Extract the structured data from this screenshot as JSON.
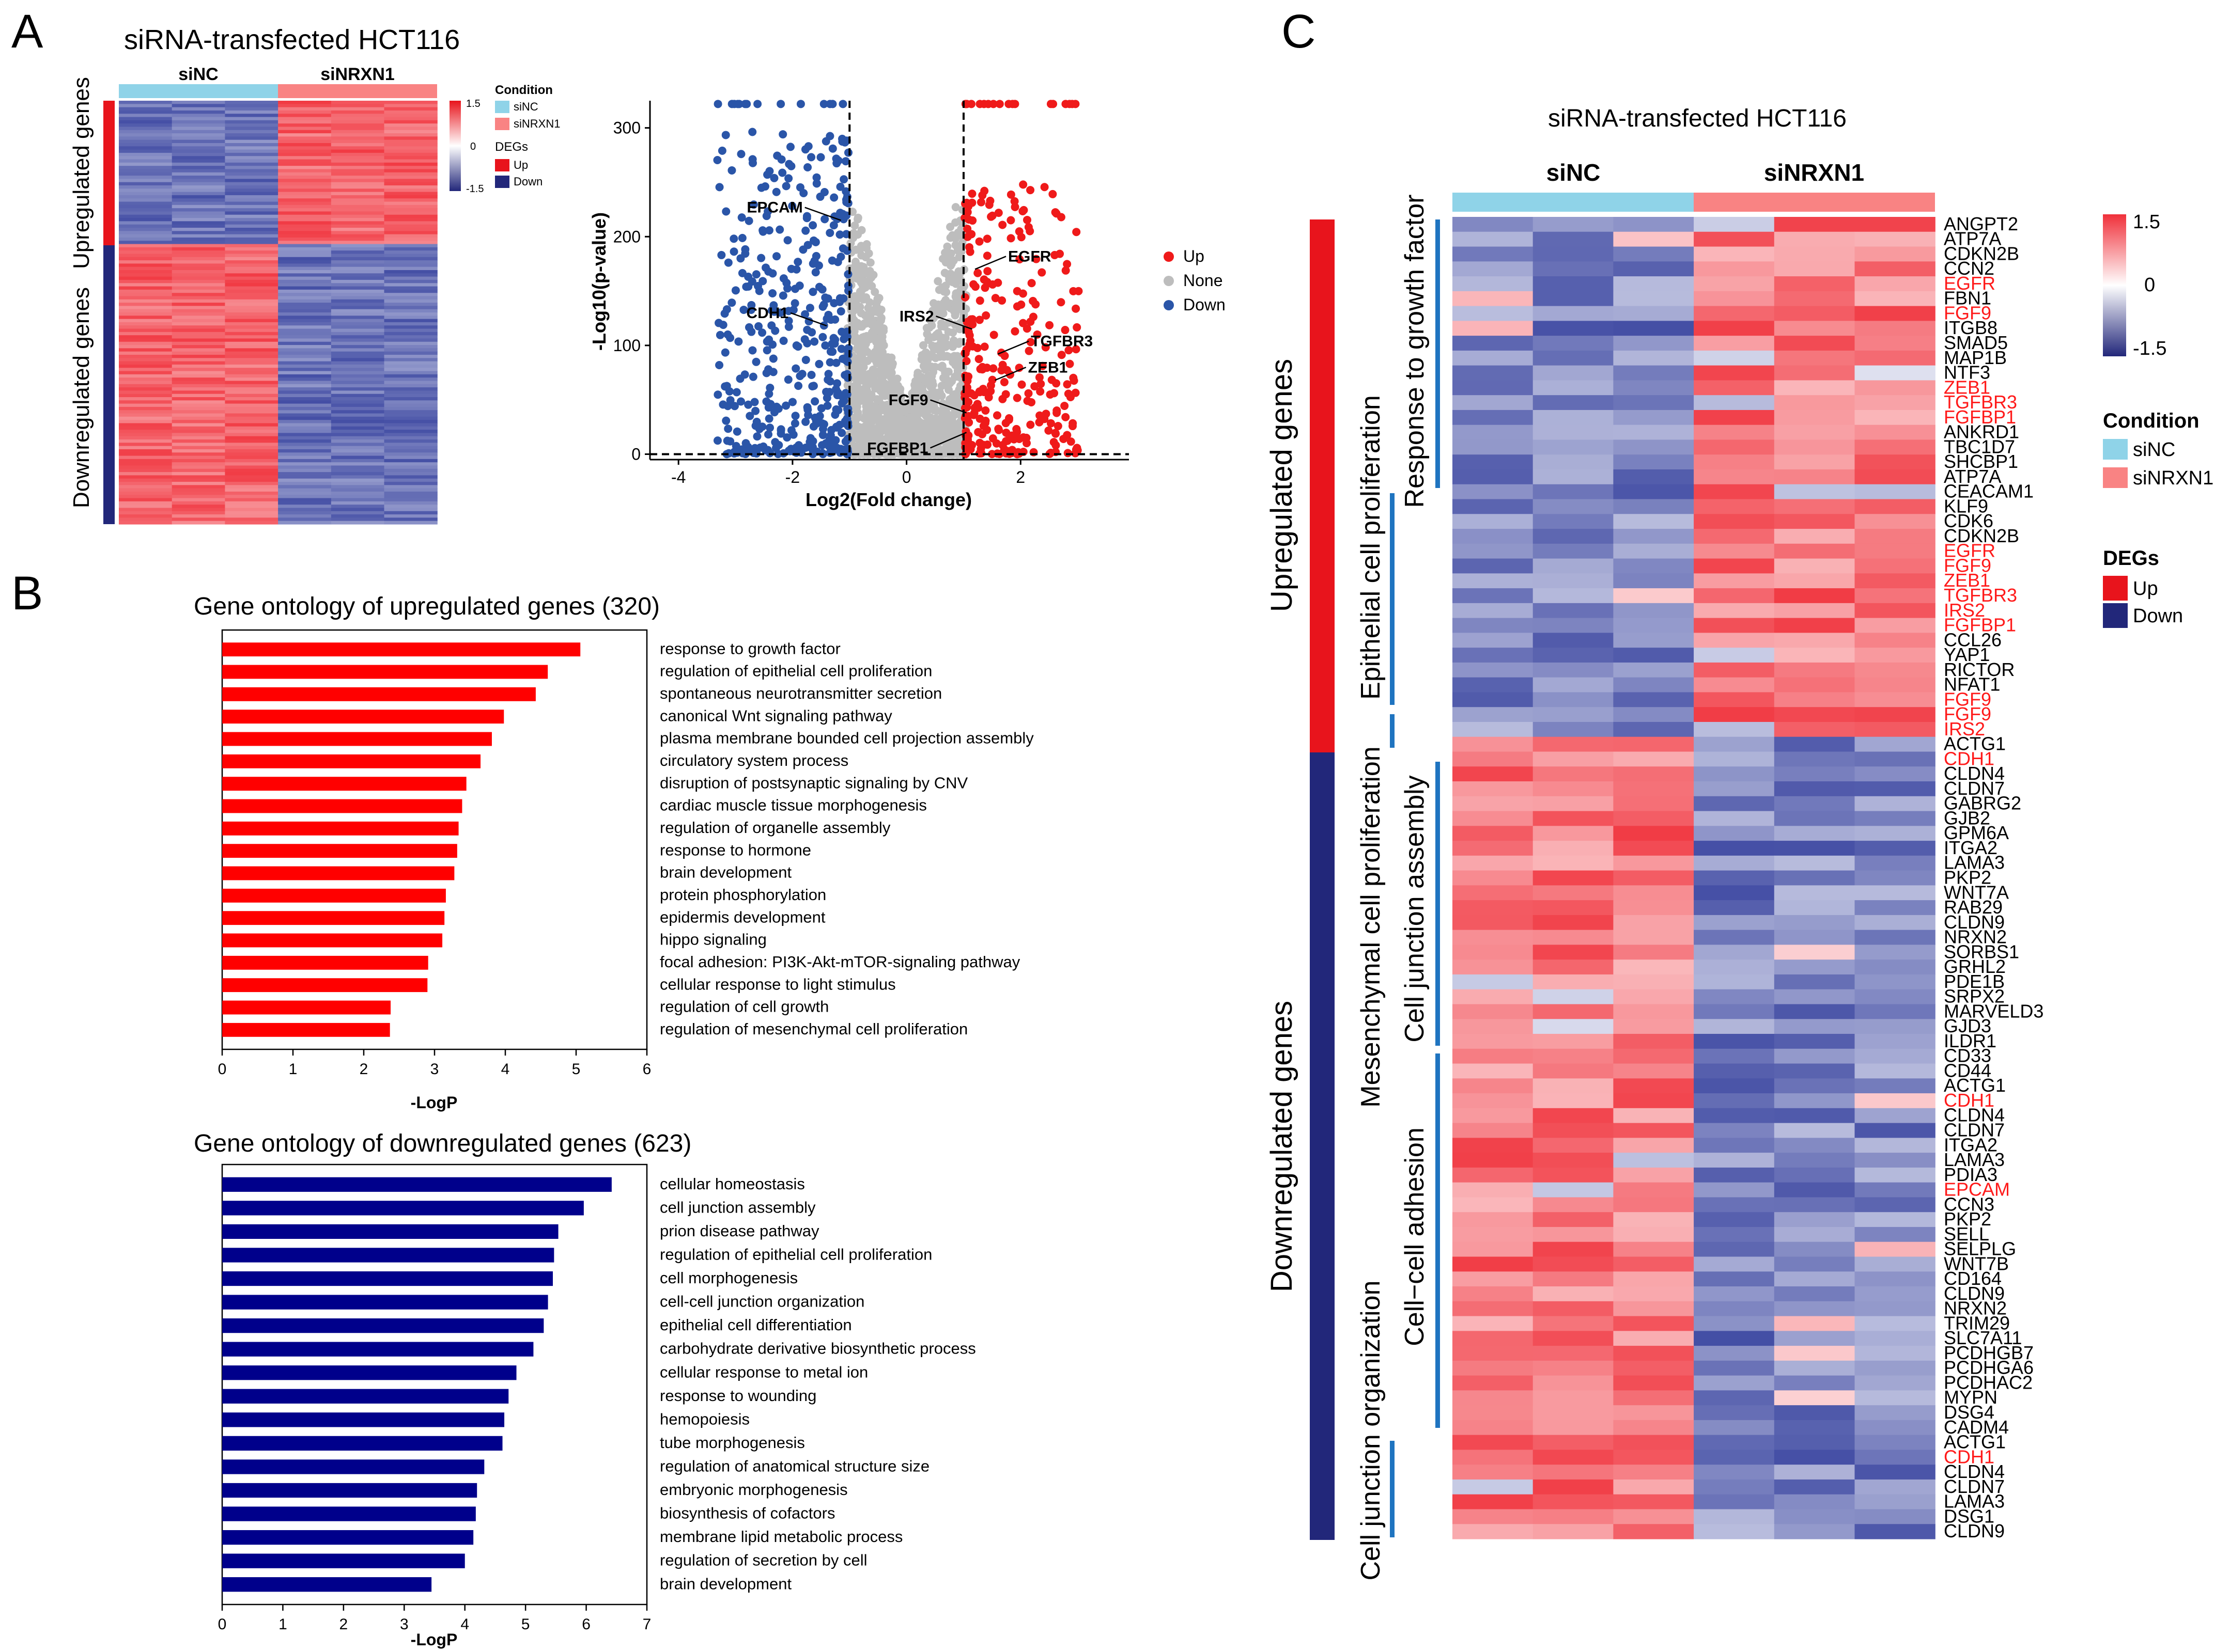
{
  "panel_letters": {
    "a": "A",
    "b": "B",
    "c": "C"
  },
  "colors": {
    "up": "#e8141c",
    "down": "#22277a",
    "hm_high": "#f0303a",
    "hm_low": "#3a45a0",
    "hm_mid": "#ffffff",
    "siNC": "#8fd3e8",
    "siNRXN1": "#f98383",
    "bar_up": "#ff0000",
    "bar_down": "#00008b",
    "none": "#bdbdbd",
    "volcano_up": "#ef1a1a",
    "volcano_down": "#2a55a8",
    "label_red": "#ff1a1a",
    "bracket_blue": "#1f74c0"
  },
  "panelA": {
    "title": "siRNA-transfected HCT116",
    "group_labels": [
      "siNC",
      "siNRXN1"
    ],
    "row_labels": [
      "Upregulated genes",
      "Downregulated genes"
    ],
    "legend": {
      "condition_title": "Condition",
      "condition_items": [
        "siNC",
        "siNRXN1"
      ],
      "degs_title": "DEGs",
      "degs_items": [
        "Up",
        "Down"
      ],
      "scale": [
        "1.5",
        "0",
        "-1.5"
      ]
    }
  },
  "chart_data": [
    {
      "type": "scatter",
      "name": "volcano",
      "xlabel": "Log2(Fold change)",
      "ylabel": "-Log10(p-value)",
      "xlim": [
        -4.5,
        3.9
      ],
      "ylim": [
        -5,
        325
      ],
      "xticks": [
        "-4",
        "-2",
        "0",
        "2"
      ],
      "xtick_values": [
        -4,
        -2,
        0,
        2
      ],
      "yticks": [
        "0",
        "100",
        "200",
        "300"
      ],
      "ytick_values": [
        0,
        100,
        200,
        300
      ],
      "thresholds": {
        "x": [
          -1,
          1
        ],
        "y": 0
      },
      "legend": [
        "Up",
        "None",
        "Down"
      ],
      "annotations": [
        {
          "label": "EPCAM",
          "x": -1.15,
          "y": 215
        },
        {
          "label": "CDH1",
          "x": -1.4,
          "y": 118
        },
        {
          "label": "EGFR",
          "x": 1.2,
          "y": 170
        },
        {
          "label": "IRS2",
          "x": 1.15,
          "y": 115
        },
        {
          "label": "TGFBR3",
          "x": 1.6,
          "y": 92
        },
        {
          "label": "ZEB1",
          "x": 1.55,
          "y": 68
        },
        {
          "label": "FGF9",
          "x": 1.05,
          "y": 38
        },
        {
          "label": "FGFBP1",
          "x": 1.05,
          "y": 20
        }
      ]
    },
    {
      "type": "bar",
      "name": "go-up",
      "title": "Gene ontology of upregulated genes (320)",
      "xlabel": "-LogP",
      "xlim": [
        0,
        6
      ],
      "xticks": [
        "0",
        "1",
        "2",
        "3",
        "4",
        "5",
        "6"
      ],
      "categories": [
        "response to growth factor",
        "regulation of epithelial cell proliferation",
        "spontaneous neurotransmitter secretion",
        "canonical Wnt signaling pathway",
        "plasma membrane bounded cell projection assembly",
        "circulatory system process",
        "disruption of postsynaptic signaling by CNV",
        "cardiac muscle tissue morphogenesis",
        "regulation of organelle assembly",
        "response to hormone",
        "brain development",
        "protein phosphorylation",
        "epidermis development",
        "hippo signaling",
        "focal adhesion: PI3K-Akt-mTOR-signaling pathway",
        "cellular response to light stimulus",
        "regulation of cell growth",
        "regulation of mesenchymal cell proliferation"
      ],
      "values": [
        5.06,
        4.6,
        4.43,
        3.98,
        3.81,
        3.65,
        3.45,
        3.39,
        3.34,
        3.32,
        3.28,
        3.16,
        3.14,
        3.11,
        2.91,
        2.9,
        2.38,
        2.37
      ]
    },
    {
      "type": "bar",
      "name": "go-down",
      "title": "Gene ontology of downregulated genes (623)",
      "xlabel": "-LogP",
      "xlim": [
        0,
        7
      ],
      "xticks": [
        "0",
        "1",
        "2",
        "3",
        "4",
        "5",
        "6",
        "7"
      ],
      "categories": [
        "cellular homeostasis",
        "cell junction assembly",
        "prion disease pathway",
        "regulation of epithelial cell proliferation",
        "cell morphogenesis",
        "cell-cell junction organization",
        "epithelial cell differentiation",
        "carbohydrate derivative biosynthetic process",
        "cellular response to metal ion",
        "response to wounding",
        "hemopoiesis",
        "tube morphogenesis",
        "regulation of anatomical structure size",
        "embryonic morphogenesis",
        "biosynthesis of cofactors",
        "membrane lipid metabolic process",
        "regulation of secretion by cell",
        "brain development"
      ],
      "values": [
        6.42,
        5.96,
        5.54,
        5.47,
        5.45,
        5.37,
        5.3,
        5.13,
        4.85,
        4.72,
        4.65,
        4.62,
        4.32,
        4.2,
        4.18,
        4.14,
        4.0,
        3.45
      ]
    }
  ],
  "panelC": {
    "title": "siRNA-transfected HCT116",
    "group_labels": [
      "siNC",
      "siNRXN1"
    ],
    "side_labels": [
      "Upregulated genes",
      "Downregulated genes"
    ],
    "category_labels": [
      "Response to growth factor",
      "Epithelial cell proliferation",
      "Mesenchymal cell proliferation",
      "Cell junction assembly",
      "Cell−cell adhesion",
      "Cell junction organization"
    ],
    "genes": [
      "ANGPT2",
      "ATP7A",
      "CDKN2B",
      "CCN2",
      "EGFR",
      "FBN1",
      "FGF9",
      "ITGB8",
      "SMAD5",
      "MAP1B",
      "NTF3",
      "ZEB1",
      "TGFBR3",
      "FGFBP1",
      "ANKRD1",
      "TBC1D7",
      "SHCBP1",
      "ATP7A",
      "CEACAM1",
      "KLF9",
      "CDK6",
      "CDKN2B",
      "EGFR",
      "FGF9",
      "ZEB1",
      "TGFBR3",
      "IRS2",
      "FGFBP1",
      "CCL26",
      "YAP1",
      "RICTOR",
      "NFAT1",
      "FGF9",
      "FGF9",
      "IRS2",
      "ACTG1",
      "CDH1",
      "CLDN4",
      "CLDN7",
      "GABRG2",
      "GJB2",
      "GPM6A",
      "ITGA2",
      "LAMA3",
      "PKP2",
      "WNT7A",
      "RAB29",
      "CLDN9",
      "NRXN2",
      "SORBS1",
      "GRHL2",
      "PDE1B",
      "SRPX2",
      "MARVELD3",
      "GJD3",
      "ILDR1",
      "CD33",
      "CD44",
      "ACTG1",
      "CDH1",
      "CLDN4",
      "CLDN7",
      "ITGA2",
      "LAMA3",
      "PDIA3",
      "EPCAM",
      "CCN3",
      "PKP2",
      "SELL",
      "SELPLG",
      "WNT7B",
      "CD164",
      "CLDN9",
      "NRXN2",
      "TRIM29",
      "SLC7A11",
      "PCDHGB7",
      "PCDHGA6",
      "PCDHAC2",
      "MYPN",
      "DSG4",
      "CADM4",
      "ACTG1",
      "CDH1",
      "CLDN4",
      "CLDN7",
      "LAMA3",
      "DSG1",
      "CLDN9"
    ],
    "red_genes": [
      "EGFR",
      "FGF9",
      "ZEB1",
      "TGFBR3",
      "FGFBP1",
      "IRS2",
      "CDH1",
      "EPCAM"
    ],
    "legend": {
      "scale": [
        "1.5",
        "0",
        "-1.5"
      ],
      "condition_title": "Condition",
      "condition_items": [
        "siNC",
        "siNRXN1"
      ],
      "degs_title": "DEGs",
      "degs_items": [
        "Up",
        "Down"
      ]
    }
  }
}
